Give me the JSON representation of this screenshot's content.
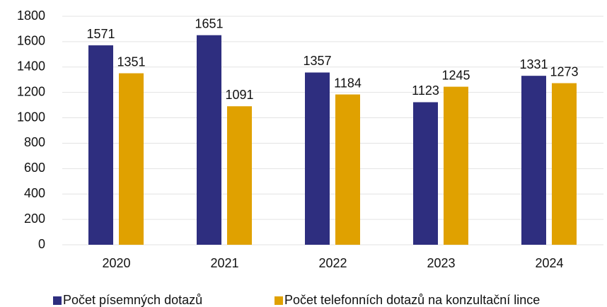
{
  "chart_data": {
    "type": "bar",
    "categories": [
      "2020",
      "2021",
      "2022",
      "2023",
      "2024"
    ],
    "series": [
      {
        "name": "Počet písemných dotazů",
        "color": "#2e2e7f",
        "values": [
          1571,
          1651,
          1357,
          1123,
          1331
        ]
      },
      {
        "name": "Počet telefonních dotazů na konzultační lince",
        "color": "#e0a100",
        "values": [
          1351,
          1091,
          1184,
          1245,
          1273
        ]
      }
    ],
    "ylim": [
      0,
      1800
    ],
    "yticks": [
      0,
      200,
      400,
      600,
      800,
      1000,
      1200,
      1400,
      1600,
      1800
    ],
    "grid": true,
    "legend": "bottom"
  }
}
